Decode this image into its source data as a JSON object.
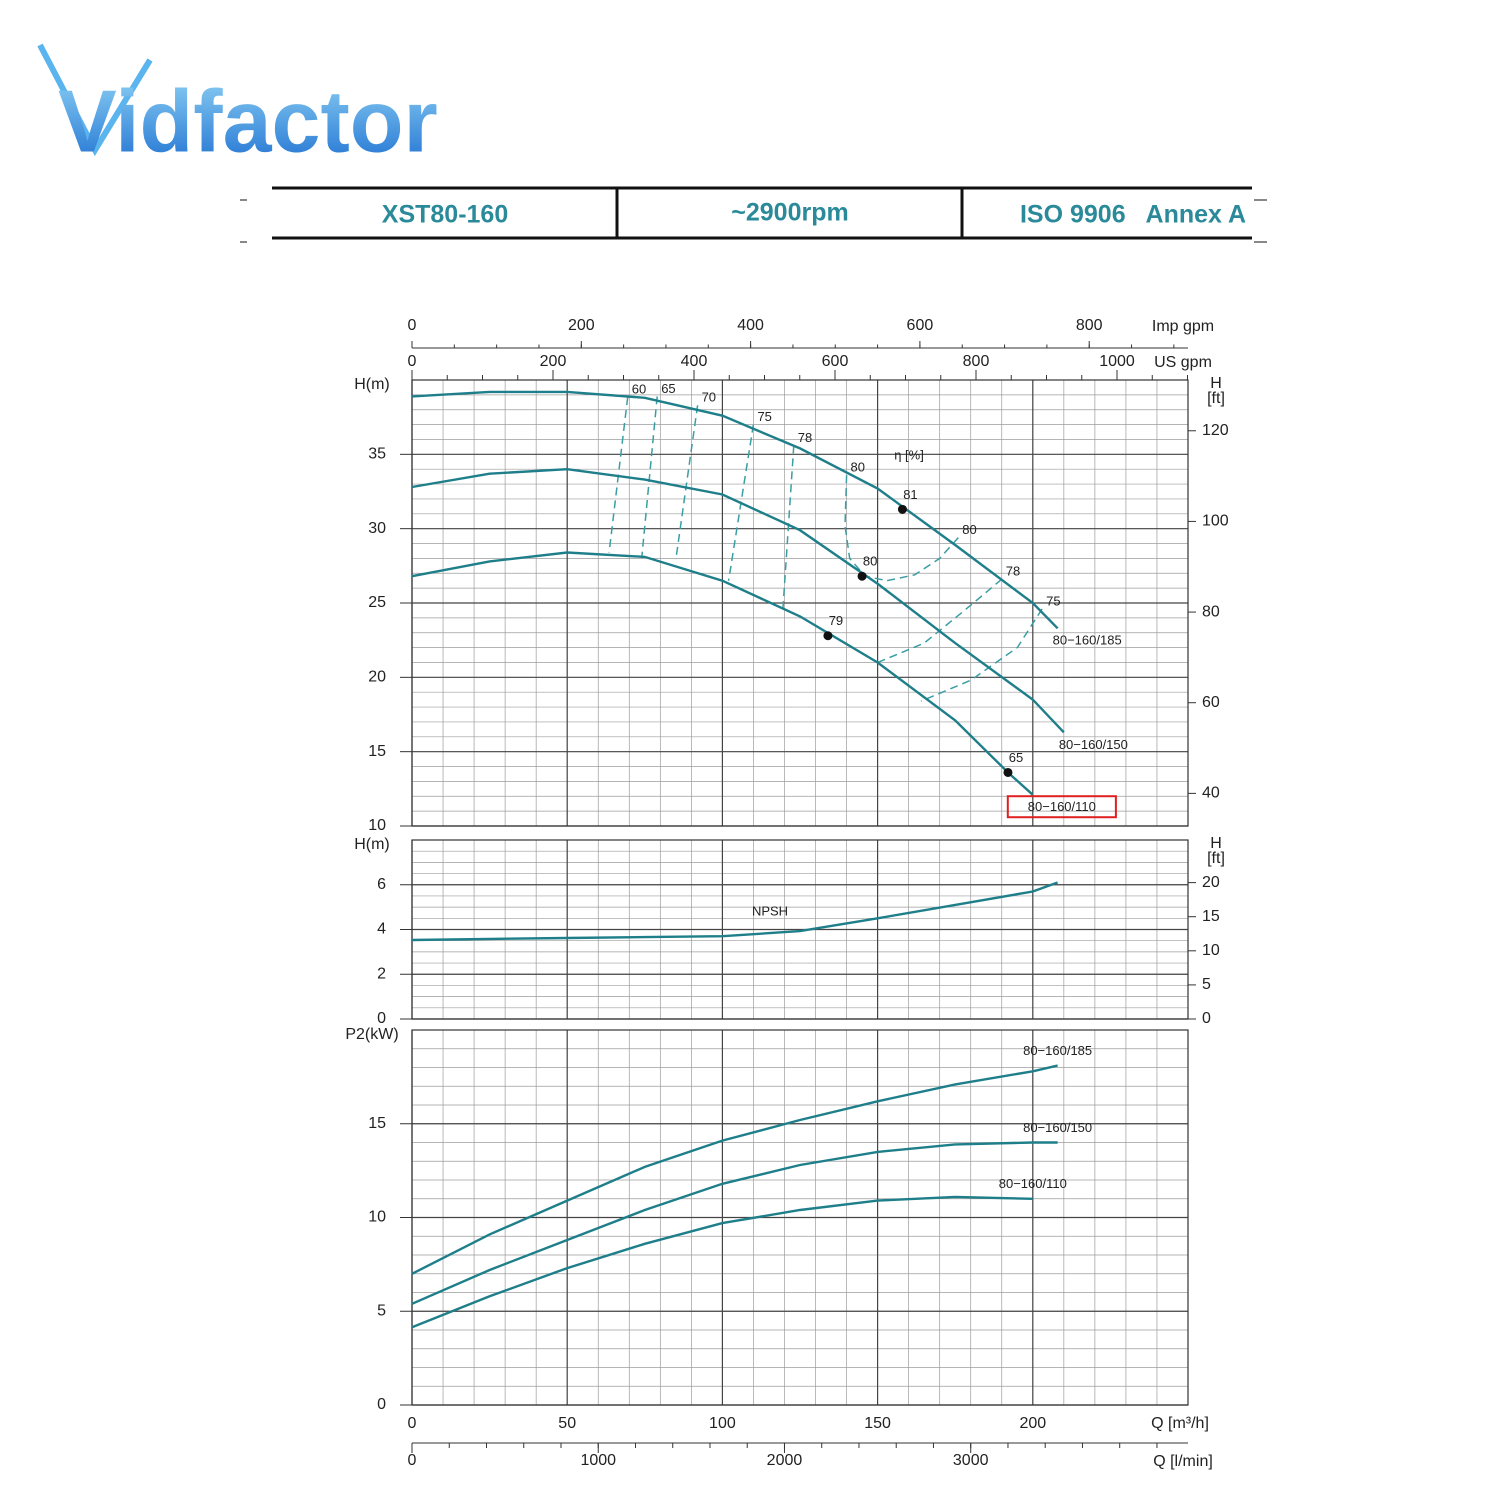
{
  "header": {
    "logo": "Vidfactor",
    "cells": [
      "XST80-160",
      "~2900rpm",
      "ISO 9906   Annex A"
    ]
  },
  "chart_data": [
    {
      "type": "line",
      "ylabel": "H(m)",
      "ylim": [
        10,
        40
      ],
      "yticks": [
        10,
        15,
        20,
        25,
        30,
        35
      ],
      "yminor": 1,
      "y2label": [
        "H",
        "[ft]"
      ],
      "y2lim": [
        32.8,
        131.2
      ],
      "y2ticks": [
        40,
        60,
        80,
        100,
        120
      ],
      "xlim": [
        0,
        250
      ],
      "xticks": [
        0,
        50,
        100,
        150,
        200
      ],
      "xminor": 10,
      "grid": true,
      "secondary_x": [
        {
          "label": "US gpm",
          "lim": [
            0,
            1100.7
          ],
          "ticks": [
            0,
            200,
            400,
            600,
            800,
            1000
          ],
          "minor": 50
        },
        {
          "label": "Imp gpm",
          "lim": [
            0,
            916.7
          ],
          "ticks": [
            0,
            200,
            400,
            600,
            800
          ],
          "minor": 50
        }
      ],
      "series": [
        {
          "name": "80−160/185",
          "color": "#1e7f8a",
          "x": [
            0,
            25,
            50,
            75,
            100,
            125,
            150,
            175,
            200,
            208
          ],
          "values": [
            38.9,
            39.2,
            39.2,
            38.8,
            37.6,
            35.4,
            32.7,
            28.9,
            25.0,
            23.3
          ]
        },
        {
          "name": "80−160/150",
          "color": "#1e7f8a",
          "x": [
            0,
            25,
            50,
            75,
            100,
            125,
            150,
            175,
            200,
            210
          ],
          "values": [
            32.8,
            33.7,
            34.0,
            33.3,
            32.3,
            29.9,
            26.3,
            22.3,
            18.5,
            16.3
          ]
        },
        {
          "name": "80−160/110",
          "color": "#1e7f8a",
          "highlight": true,
          "x": [
            0,
            25,
            50,
            75,
            100,
            125,
            150,
            175,
            192,
            200
          ],
          "values": [
            26.8,
            27.8,
            28.4,
            28.1,
            26.5,
            24.1,
            21.0,
            17.1,
            13.6,
            12.1
          ]
        }
      ],
      "points": [
        {
          "x": 158,
          "value": 31.3,
          "eta": 81
        },
        {
          "x": 145,
          "value": 26.8,
          "eta": 80
        },
        {
          "x": 134,
          "value": 22.8,
          "eta": 79
        },
        {
          "x": 192,
          "value": 13.6,
          "eta": 65
        }
      ],
      "annotation": "η [%]",
      "iso_color": "#3a9ea3",
      "iso_lines": [
        {
          "eta": 60,
          "x": [
            69.5,
            63.5
          ],
          "values": [
            38.85,
            28.4
          ]
        },
        {
          "eta": 65,
          "x": [
            79,
            74
          ],
          "values": [
            38.9,
            28.0
          ]
        },
        {
          "eta": 70,
          "x": [
            92,
            85
          ],
          "values": [
            38.3,
            27.9
          ]
        },
        {
          "eta": 75,
          "x": [
            110,
            102
          ],
          "values": [
            37.0,
            26.5
          ]
        },
        {
          "eta": 78,
          "x": [
            123,
            119.5
          ],
          "values": [
            35.6,
            24.6
          ]
        },
        {
          "eta": 80,
          "x": [
            140,
            139.5,
            141,
            146,
            153
          ],
          "values": [
            33.6,
            30.2,
            28.0,
            26.8,
            26.5
          ]
        },
        {
          "eta": 80,
          "x": [
            176,
            170,
            162,
            153
          ],
          "values": [
            29.4,
            28.0,
            26.9,
            26.5
          ]
        },
        {
          "eta": 78,
          "x": [
            190,
            178,
            165,
            150
          ],
          "values": [
            26.6,
            24.5,
            22.3,
            21.0
          ]
        },
        {
          "eta": 75,
          "x": [
            203,
            195,
            180,
            164
          ],
          "values": [
            24.6,
            22.0,
            19.8,
            18.4
          ]
        }
      ]
    },
    {
      "type": "line",
      "ylabel": "H(m)",
      "ylim": [
        0,
        8
      ],
      "yticks": [
        0,
        2,
        4,
        6
      ],
      "yminor": 0.5,
      "y2label": [
        "H",
        "[ft]"
      ],
      "y2lim": [
        0,
        26.25
      ],
      "y2ticks": [
        0,
        5,
        10,
        15,
        20
      ],
      "xlim": [
        0,
        250
      ],
      "xticks": [
        0,
        50,
        100,
        150,
        200
      ],
      "xminor": 10,
      "grid": true,
      "series": [
        {
          "name": "NPSH",
          "color": "#1e7f8a",
          "x": [
            0,
            25,
            50,
            75,
            100,
            125,
            150,
            175,
            200,
            208
          ],
          "values": [
            3.53,
            3.58,
            3.62,
            3.66,
            3.7,
            3.93,
            4.5,
            5.1,
            5.7,
            6.1
          ]
        }
      ]
    },
    {
      "type": "line",
      "ylabel": "P2(kW)",
      "ylim": [
        0,
        20
      ],
      "yticks": [
        0,
        5,
        10,
        15
      ],
      "yminor": 1,
      "xlabel": "Q [m³/h]",
      "xlim": [
        0,
        250
      ],
      "xticks": [
        0,
        50,
        100,
        150,
        200
      ],
      "xminor": 10,
      "grid": true,
      "secondary_x": [
        {
          "label": "Q [l/min]",
          "lim": [
            0,
            4166.7
          ],
          "ticks": [
            0,
            1000,
            2000,
            3000
          ],
          "minor": 200
        }
      ],
      "series": [
        {
          "name": "80−160/185",
          "color": "#1e7f8a",
          "x": [
            0,
            25,
            50,
            75,
            100,
            125,
            150,
            175,
            200,
            208
          ],
          "values": [
            7.0,
            9.1,
            10.9,
            12.7,
            14.1,
            15.2,
            16.2,
            17.1,
            17.8,
            18.1
          ]
        },
        {
          "name": "80−160/150",
          "color": "#1e7f8a",
          "x": [
            0,
            25,
            50,
            75,
            100,
            125,
            150,
            175,
            200,
            208
          ],
          "values": [
            5.4,
            7.2,
            8.8,
            10.4,
            11.8,
            12.8,
            13.5,
            13.9,
            14.0,
            14.0
          ]
        },
        {
          "name": "80−160/110",
          "color": "#1e7f8a",
          "x": [
            0,
            25,
            50,
            75,
            100,
            125,
            150,
            175,
            200
          ],
          "values": [
            4.15,
            5.8,
            7.3,
            8.6,
            9.7,
            10.4,
            10.9,
            11.1,
            11.0
          ]
        }
      ]
    }
  ]
}
